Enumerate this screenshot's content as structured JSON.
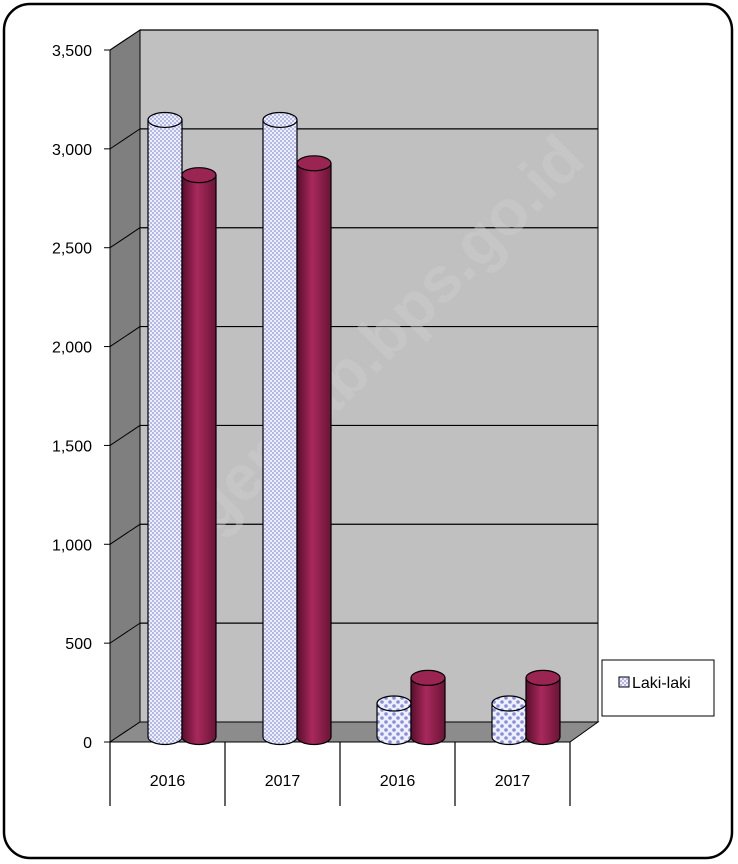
{
  "chart_data": {
    "type": "bar",
    "categories": [
      "2016",
      "2017",
      "2016",
      "2017"
    ],
    "series": [
      {
        "name": "Laki-laki",
        "values": [
          3130,
          3130,
          170,
          170
        ]
      },
      {
        "values": [
          2850,
          2910,
          300,
          300
        ]
      }
    ],
    "ylim": [
      0,
      3500
    ],
    "yticks": [
      "0",
      "500",
      "1,000",
      "1,500",
      "2,000",
      "2,500",
      "3,000",
      "3,500"
    ],
    "ytick_values": [
      0,
      500,
      1000,
      1500,
      2000,
      2500,
      3000,
      3500
    ],
    "grid": true,
    "legend": "right",
    "watermark": "agenkab.bps.go.id",
    "colors": {
      "series1": "#c8ccf0",
      "series2": "#9a2452",
      "wall": "#c0c0c0",
      "side_wall": "#7f7f7f",
      "floor": "#8c8c8c"
    }
  }
}
